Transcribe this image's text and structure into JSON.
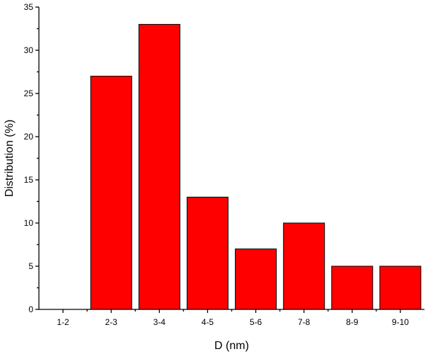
{
  "chart_data": {
    "type": "bar",
    "categories": [
      "1-2",
      "2-3",
      "3-4",
      "4-5",
      "5-6",
      "7-8",
      "8-9",
      "9-10"
    ],
    "values": [
      0,
      27,
      33,
      13,
      7,
      10,
      5,
      5
    ],
    "xlabel": "D (nm)",
    "ylabel": "Distribution (%)",
    "ylim": [
      0,
      35
    ],
    "yticks": [
      0,
      5,
      10,
      15,
      20,
      25,
      30,
      35
    ],
    "bar_color": "#ff0000",
    "grid": false
  }
}
